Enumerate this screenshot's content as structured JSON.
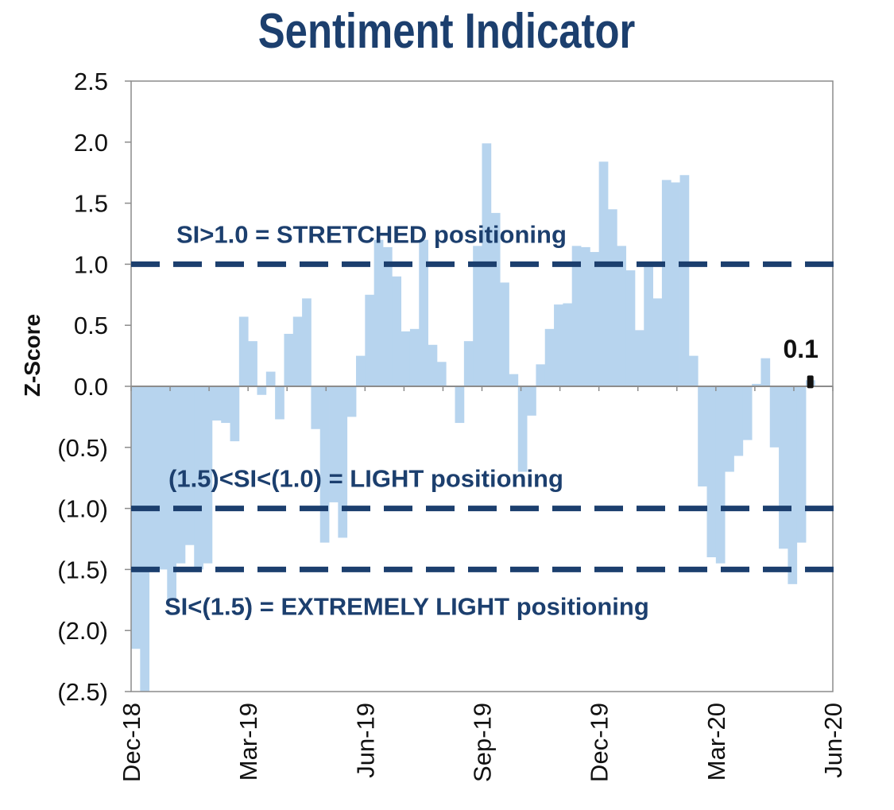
{
  "chart_data": {
    "type": "bar",
    "title": "Sentiment Indicator",
    "xlabel": "",
    "ylabel": "Z-Score",
    "ylim": [
      -2.5,
      2.5
    ],
    "yticks": [
      {
        "value": 2.5,
        "label": "2.5"
      },
      {
        "value": 2.0,
        "label": "2.0"
      },
      {
        "value": 1.5,
        "label": "1.5"
      },
      {
        "value": 1.0,
        "label": "1.0"
      },
      {
        "value": 0.5,
        "label": "0.5"
      },
      {
        "value": 0.0,
        "label": "0.0"
      },
      {
        "value": -0.5,
        "label": "(0.5)"
      },
      {
        "value": -1.0,
        "label": "(1.0)"
      },
      {
        "value": -1.5,
        "label": "(1.5)"
      },
      {
        "value": -2.0,
        "label": "(2.0)"
      },
      {
        "value": -2.5,
        "label": "(2.5)"
      }
    ],
    "xticks": [
      "Dec-18",
      "Mar-19",
      "Jun-19",
      "Sep-19",
      "Dec-19",
      "Mar-20",
      "Jun-20"
    ],
    "x_range_weeks": [
      0,
      78
    ],
    "bar_color": "#b7d4ee",
    "threshold_color": "#1c3f6e",
    "values": [
      -2.15,
      -2.5,
      -1.5,
      -1.5,
      -1.75,
      -1.45,
      -1.3,
      -1.5,
      -1.45,
      -0.28,
      -0.3,
      -0.45,
      0.57,
      0.37,
      -0.07,
      0.12,
      -0.27,
      0.43,
      0.57,
      0.72,
      -0.35,
      -1.28,
      -0.95,
      -1.24,
      -0.25,
      0.25,
      0.75,
      1.2,
      1.14,
      0.9,
      0.45,
      0.47,
      1.2,
      0.34,
      0.2,
      0.0,
      -0.3,
      0.37,
      1.15,
      1.99,
      1.42,
      0.85,
      0.1,
      -0.7,
      -0.24,
      0.18,
      0.47,
      0.67,
      0.68,
      1.15,
      1.14,
      1.1,
      1.84,
      1.45,
      1.15,
      0.95,
      0.46,
      1.0,
      0.72,
      1.69,
      1.67,
      1.73,
      0.25,
      -0.82,
      -1.4,
      -1.45,
      -0.7,
      -0.57,
      -0.44,
      0.02,
      0.23,
      -0.5,
      -1.33,
      -1.62,
      -1.28,
      0.05
    ],
    "thresholds": [
      {
        "value": 1.0,
        "label": "SI>1.0 = STRETCHED positioning",
        "label_pos": "above"
      },
      {
        "value": -1.0,
        "label": "(1.5)<SI<(1.0) = LIGHT positioning",
        "label_pos": "above"
      },
      {
        "value": -1.5,
        "label": "SI<(1.5) = EXTREMELY LIGHT positioning",
        "label_pos": "below"
      }
    ],
    "last_value": {
      "value": 0.05,
      "label": "0.1"
    }
  }
}
